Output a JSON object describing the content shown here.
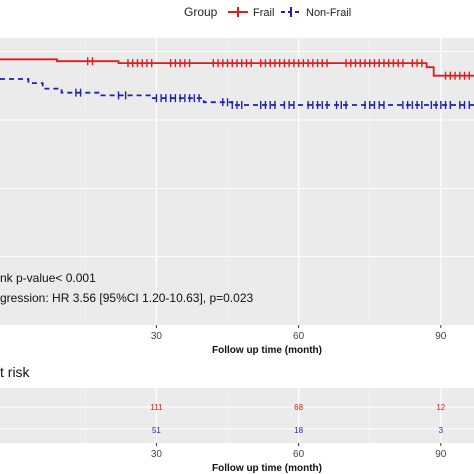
{
  "legend": {
    "title": "Group",
    "items": [
      {
        "label": "Frail",
        "color": "#e31a1c"
      },
      {
        "label": "Non-Frail",
        "color": "#1f1fb4"
      }
    ]
  },
  "chart_data": [
    {
      "type": "line",
      "subtype": "kaplan-meier-survival",
      "xlabel": "Follow up time (month)",
      "ylabel": "",
      "xlim": [
        -3,
        97
      ],
      "ylim": [
        0,
        1.05
      ],
      "xticks": [
        30,
        60,
        90
      ],
      "grid": true,
      "legend_position": "top",
      "annotations": [
        "nk p-value< 0.001",
        "gression: HR 3.56 [95%CI 1.20-10.63], p=0.023"
      ],
      "series": [
        {
          "name": "Frail",
          "color": "#e31a1c",
          "line_style": "solid",
          "steps": [
            [
              -3,
              0.972
            ],
            [
              9,
              0.972
            ],
            [
              9,
              0.965
            ],
            [
              22,
              0.965
            ],
            [
              22,
              0.958
            ],
            [
              87,
              0.958
            ],
            [
              87,
              0.943
            ],
            [
              88.5,
              0.943
            ],
            [
              88.5,
              0.912
            ],
            [
              97,
              0.912
            ]
          ],
          "censor_times": [
            15.5,
            16.5,
            24,
            25,
            26,
            27,
            28,
            29,
            33,
            34,
            35,
            36,
            37,
            42,
            43,
            44,
            45,
            46,
            47,
            48,
            49,
            50,
            52,
            53,
            54,
            55,
            56,
            57,
            58,
            59,
            60,
            61,
            62,
            63,
            64,
            65,
            66,
            70,
            71,
            72,
            73,
            74,
            75,
            76,
            77,
            78,
            79,
            80,
            81,
            82,
            84,
            85,
            86,
            91,
            92,
            93,
            94,
            95,
            96
          ]
        },
        {
          "name": "Non-Frail",
          "color": "#1f1fb4",
          "line_style": "dashed",
          "steps": [
            [
              -3,
              0.9
            ],
            [
              3,
              0.9
            ],
            [
              3,
              0.885
            ],
            [
              6,
              0.885
            ],
            [
              6,
              0.865
            ],
            [
              10,
              0.865
            ],
            [
              10,
              0.85
            ],
            [
              18,
              0.85
            ],
            [
              18,
              0.84
            ],
            [
              29,
              0.84
            ],
            [
              29,
              0.83
            ],
            [
              40,
              0.83
            ],
            [
              40,
              0.815
            ],
            [
              46,
              0.815
            ],
            [
              46,
              0.805
            ],
            [
              87,
              0.805
            ],
            [
              87,
              0.805
            ],
            [
              97,
              0.805
            ]
          ],
          "censor_times": [
            13,
            14,
            22,
            23.5,
            30,
            31,
            32,
            33,
            34,
            35,
            36,
            37,
            38,
            39,
            44,
            45,
            46,
            47,
            48,
            52,
            53,
            54,
            55,
            57,
            58,
            59,
            62,
            63,
            64,
            65,
            66,
            68,
            69,
            70,
            74,
            75,
            76,
            77,
            78,
            82,
            83,
            84,
            85,
            86,
            88,
            89,
            90,
            91,
            92,
            94,
            95,
            96
          ]
        }
      ]
    },
    {
      "type": "table",
      "title": "t risk",
      "xlabel": "Follow up time (month)",
      "xticks": [
        30,
        60,
        90
      ],
      "rows": [
        {
          "group": "Frail",
          "color": "#e31a1c",
          "values": [
            "111",
            "68",
            "12"
          ]
        },
        {
          "group": "Non-Frail",
          "color": "#1f1fb4",
          "values": [
            "51",
            "18",
            "3"
          ]
        }
      ]
    }
  ]
}
